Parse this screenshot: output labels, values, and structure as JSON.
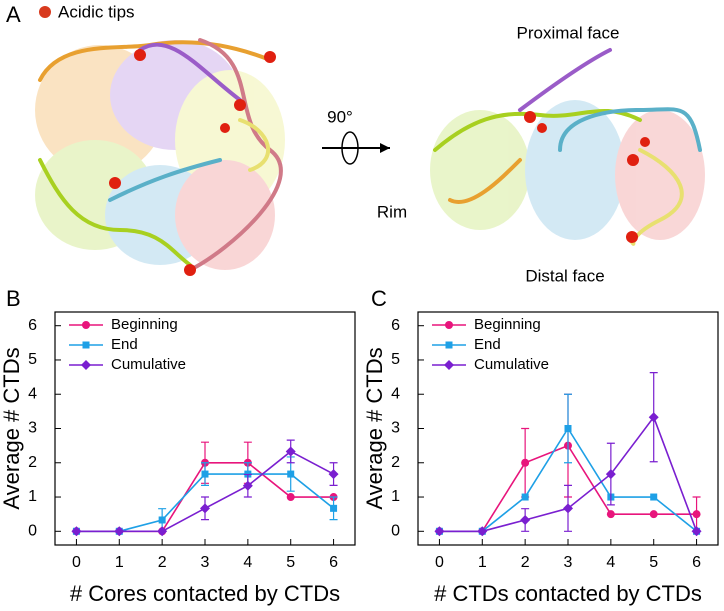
{
  "panel_a": {
    "label": "A",
    "legend": "Acidic tips",
    "angle": "90°",
    "proximal": "Proximal face",
    "rim": "Rim",
    "distal": "Distal face"
  },
  "chart_data": [
    {
      "type": "line",
      "panel_label": "B",
      "xlabel": "# Cores contacted by CTDs",
      "ylabel": "Average # CTDs",
      "x": [
        0,
        1,
        2,
        3,
        4,
        5,
        6
      ],
      "xlim": [
        -0.5,
        6.5
      ],
      "xticks": [
        0,
        1,
        2,
        3,
        4,
        5,
        6
      ],
      "ylim": [
        -0.4,
        6.4
      ],
      "yticks": [
        0,
        1,
        2,
        3,
        4,
        5,
        6
      ],
      "legend": "upper left",
      "series": [
        {
          "name": "Beginning",
          "color": "#e8157c",
          "marker": "circle",
          "values": [
            0,
            0,
            0,
            2,
            2,
            1,
            1
          ],
          "errors": [
            0,
            0,
            0,
            0.6,
            0.6,
            0,
            0
          ]
        },
        {
          "name": "End",
          "color": "#1ea0e6",
          "marker": "square",
          "values": [
            0,
            0,
            0.33,
            1.67,
            1.67,
            1.67,
            0.67
          ],
          "errors": [
            0,
            0,
            0.33,
            0.33,
            0.33,
            0.5,
            0.33
          ]
        },
        {
          "name": "Cumulative",
          "color": "#7a1fd0",
          "marker": "diamond",
          "values": [
            0,
            0,
            0,
            0.67,
            1.33,
            2.33,
            1.67
          ],
          "errors": [
            0,
            0,
            0,
            0.33,
            0.33,
            0.33,
            0.33
          ]
        }
      ]
    },
    {
      "type": "line",
      "panel_label": "C",
      "xlabel": "# CTDs contacted by CTDs",
      "ylabel": "Average # CTDs",
      "x": [
        0,
        1,
        2,
        3,
        4,
        5,
        6
      ],
      "xlim": [
        -0.5,
        6.5
      ],
      "xticks": [
        0,
        1,
        2,
        3,
        4,
        5,
        6
      ],
      "ylim": [
        -0.4,
        6.4
      ],
      "yticks": [
        0,
        1,
        2,
        3,
        4,
        5,
        6
      ],
      "legend": "upper left",
      "series": [
        {
          "name": "Beginning",
          "color": "#e8157c",
          "marker": "circle",
          "values": [
            0,
            0,
            2,
            2.5,
            0.5,
            0.5,
            0.5
          ],
          "errors": [
            0,
            0,
            1,
            1.5,
            0,
            0,
            0.5
          ]
        },
        {
          "name": "End",
          "color": "#1ea0e6",
          "marker": "square",
          "values": [
            0,
            0,
            1,
            3,
            1,
            1,
            0
          ],
          "errors": [
            0,
            0,
            0,
            1,
            0,
            0,
            0
          ]
        },
        {
          "name": "Cumulative",
          "color": "#7a1fd0",
          "marker": "diamond",
          "values": [
            0,
            0,
            0.33,
            0.67,
            1.67,
            3.33,
            0
          ],
          "errors": [
            0,
            0,
            0.33,
            0.67,
            0.9,
            1.3,
            0
          ]
        }
      ]
    }
  ]
}
